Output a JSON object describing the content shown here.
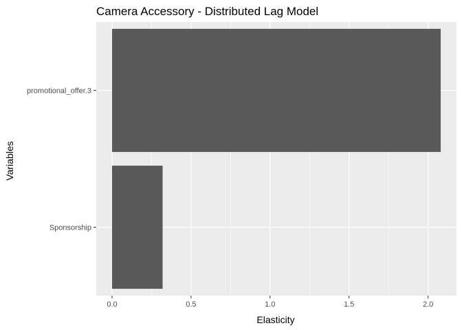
{
  "chart_data": {
    "type": "bar",
    "orientation": "horizontal",
    "title": "Camera Accessory - Distributed Lag Model",
    "xlabel": "Elasticity",
    "ylabel": "Variables",
    "categories": [
      "promotional_offer.3",
      "Sponsorship"
    ],
    "values": [
      2.08,
      0.32
    ],
    "xlim": [
      -0.1,
      2.18
    ],
    "xticks": [
      0.0,
      0.5,
      1.0,
      1.5,
      2.0
    ],
    "xtick_labels": [
      "0.0",
      "0.5",
      "1.0",
      "1.5",
      "2.0"
    ],
    "grid": true,
    "bar_color": "#595959",
    "panel_background": "#ebebeb",
    "grid_color": "#ffffff"
  }
}
